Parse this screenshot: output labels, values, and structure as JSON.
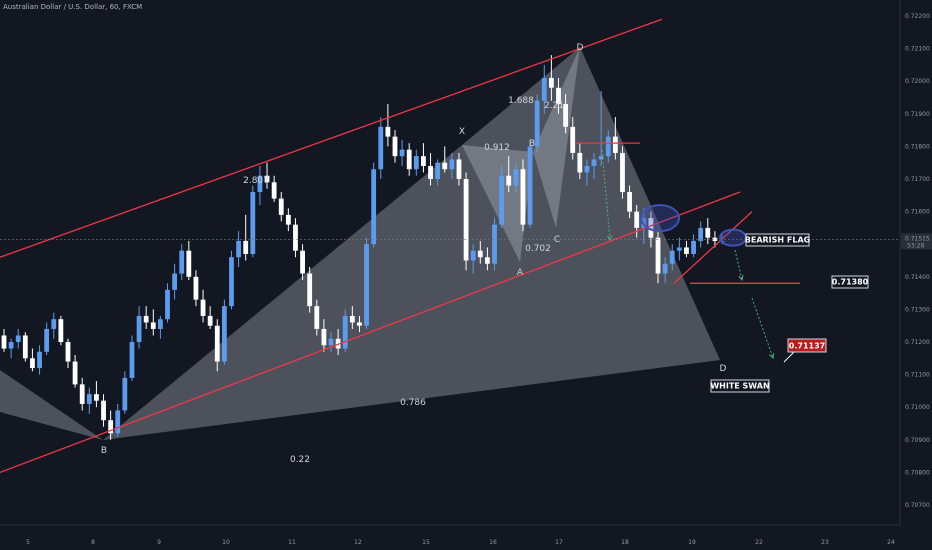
{
  "chart_data": {
    "type": "candlestick",
    "title": "Australian Dollar / U.S. Dollar, 60, FXCM",
    "x_ticks": [
      "5",
      "8",
      "9",
      "10",
      "11",
      "12",
      "15",
      "16",
      "17",
      "18",
      "19",
      "22",
      "23",
      "24"
    ],
    "y_ticks": [
      "0.72200",
      "0.72100",
      "0.72000",
      "0.71900",
      "0.71800",
      "0.71700",
      "0.71600",
      "0.71500",
      "0.71400",
      "0.71300",
      "0.71200",
      "0.71100",
      "0.71000",
      "0.70900",
      "0.70800",
      "0.70700"
    ],
    "ylim": [
      0.7065,
      0.7225
    ],
    "price": {
      "current": "0.71515",
      "countdown": "53:28"
    },
    "grid": false,
    "candles_ohlc": [
      [
        0.7122,
        0.7124,
        0.7117,
        0.7118
      ],
      [
        0.7118,
        0.7121,
        0.7115,
        0.712
      ],
      [
        0.712,
        0.7124,
        0.7118,
        0.7122
      ],
      [
        0.7122,
        0.7123,
        0.7114,
        0.7115
      ],
      [
        0.7115,
        0.7118,
        0.7111,
        0.7112
      ],
      [
        0.7112,
        0.7119,
        0.711,
        0.7117
      ],
      [
        0.7117,
        0.7126,
        0.7116,
        0.7124
      ],
      [
        0.7124,
        0.7129,
        0.7121,
        0.7127
      ],
      [
        0.7127,
        0.7128,
        0.7119,
        0.712
      ],
      [
        0.712,
        0.7121,
        0.7112,
        0.7114
      ],
      [
        0.7114,
        0.7116,
        0.7106,
        0.7107
      ],
      [
        0.7107,
        0.7109,
        0.7099,
        0.7101
      ],
      [
        0.7101,
        0.7106,
        0.7098,
        0.7104
      ],
      [
        0.7104,
        0.7108,
        0.71,
        0.7102
      ],
      [
        0.7102,
        0.7104,
        0.7094,
        0.7096
      ],
      [
        0.7096,
        0.7099,
        0.709,
        0.7092
      ],
      [
        0.7092,
        0.7101,
        0.7091,
        0.7099
      ],
      [
        0.7099,
        0.7111,
        0.7098,
        0.7109
      ],
      [
        0.7109,
        0.7122,
        0.7108,
        0.712
      ],
      [
        0.712,
        0.7131,
        0.7118,
        0.7128
      ],
      [
        0.7128,
        0.7131,
        0.7124,
        0.7126
      ],
      [
        0.7126,
        0.713,
        0.7122,
        0.7124
      ],
      [
        0.7124,
        0.7128,
        0.7121,
        0.7127
      ],
      [
        0.7127,
        0.7138,
        0.7126,
        0.7136
      ],
      [
        0.7136,
        0.7144,
        0.7133,
        0.7141
      ],
      [
        0.7141,
        0.715,
        0.7139,
        0.7148
      ],
      [
        0.7148,
        0.7151,
        0.7139,
        0.714
      ],
      [
        0.714,
        0.7142,
        0.7131,
        0.7133
      ],
      [
        0.7133,
        0.7136,
        0.7126,
        0.7128
      ],
      [
        0.7128,
        0.7131,
        0.7124,
        0.7125
      ],
      [
        0.7125,
        0.7127,
        0.7111,
        0.7114
      ],
      [
        0.7114,
        0.7133,
        0.7113,
        0.7131
      ],
      [
        0.7131,
        0.7148,
        0.713,
        0.7146
      ],
      [
        0.7146,
        0.7154,
        0.7143,
        0.7151
      ],
      [
        0.7151,
        0.7159,
        0.7145,
        0.7147
      ],
      [
        0.7147,
        0.7168,
        0.7146,
        0.7166
      ],
      [
        0.7166,
        0.7174,
        0.7162,
        0.7171
      ],
      [
        0.7171,
        0.7175,
        0.7167,
        0.7169
      ],
      [
        0.7169,
        0.7171,
        0.7163,
        0.7164
      ],
      [
        0.7164,
        0.7166,
        0.7157,
        0.7159
      ],
      [
        0.7159,
        0.7161,
        0.7154,
        0.7156
      ],
      [
        0.7156,
        0.7158,
        0.7146,
        0.7148
      ],
      [
        0.7148,
        0.715,
        0.7139,
        0.7141
      ],
      [
        0.7141,
        0.7143,
        0.7129,
        0.7131
      ],
      [
        0.7131,
        0.7133,
        0.7122,
        0.7124
      ],
      [
        0.7124,
        0.7127,
        0.7117,
        0.7119
      ],
      [
        0.7119,
        0.7123,
        0.7117,
        0.7121
      ],
      [
        0.7121,
        0.7124,
        0.7116,
        0.7118
      ],
      [
        0.7118,
        0.713,
        0.7117,
        0.7128
      ],
      [
        0.7128,
        0.7131,
        0.7124,
        0.7126
      ],
      [
        0.7126,
        0.7128,
        0.7123,
        0.7125
      ],
      [
        0.7125,
        0.7152,
        0.7124,
        0.715
      ],
      [
        0.715,
        0.7175,
        0.7149,
        0.7173
      ],
      [
        0.7173,
        0.7189,
        0.717,
        0.7186
      ],
      [
        0.7186,
        0.7193,
        0.718,
        0.7183
      ],
      [
        0.7183,
        0.7185,
        0.7175,
        0.7177
      ],
      [
        0.7177,
        0.7182,
        0.7174,
        0.7179
      ],
      [
        0.7179,
        0.7181,
        0.7171,
        0.7173
      ],
      [
        0.7173,
        0.7179,
        0.7171,
        0.7177
      ],
      [
        0.7177,
        0.7181,
        0.7172,
        0.7174
      ],
      [
        0.7174,
        0.7178,
        0.7168,
        0.717
      ],
      [
        0.717,
        0.7176,
        0.7168,
        0.7175
      ],
      [
        0.7175,
        0.718,
        0.7172,
        0.7173
      ],
      [
        0.7173,
        0.7178,
        0.717,
        0.7176
      ],
      [
        0.7176,
        0.7178,
        0.7168,
        0.717
      ],
      [
        0.717,
        0.7172,
        0.7142,
        0.7145
      ],
      [
        0.7145,
        0.715,
        0.7141,
        0.7148
      ],
      [
        0.7148,
        0.7151,
        0.7144,
        0.7146
      ],
      [
        0.7146,
        0.7149,
        0.7142,
        0.7144
      ],
      [
        0.7144,
        0.7158,
        0.7142,
        0.7156
      ],
      [
        0.7156,
        0.7174,
        0.7155,
        0.7171
      ],
      [
        0.7171,
        0.7177,
        0.7166,
        0.7168
      ],
      [
        0.7168,
        0.7175,
        0.7166,
        0.7173
      ],
      [
        0.7173,
        0.7176,
        0.7154,
        0.7156
      ],
      [
        0.7156,
        0.7182,
        0.7155,
        0.718
      ],
      [
        0.718,
        0.7196,
        0.7178,
        0.7194
      ],
      [
        0.7194,
        0.7205,
        0.719,
        0.7201
      ],
      [
        0.7201,
        0.7208,
        0.7194,
        0.7198
      ],
      [
        0.7198,
        0.7201,
        0.719,
        0.7193
      ],
      [
        0.7193,
        0.7196,
        0.7184,
        0.7186
      ],
      [
        0.7186,
        0.7189,
        0.7176,
        0.7178
      ],
      [
        0.7178,
        0.7181,
        0.717,
        0.7172
      ],
      [
        0.7172,
        0.7176,
        0.7168,
        0.7174
      ],
      [
        0.7174,
        0.7178,
        0.717,
        0.7176
      ],
      [
        0.7176,
        0.7197,
        0.7174,
        0.7177
      ],
      [
        0.7177,
        0.7185,
        0.7175,
        0.7183
      ],
      [
        0.7183,
        0.7189,
        0.7176,
        0.7178
      ],
      [
        0.7178,
        0.718,
        0.7164,
        0.7166
      ],
      [
        0.7166,
        0.7168,
        0.7158,
        0.716
      ],
      [
        0.716,
        0.7162,
        0.7152,
        0.7155
      ],
      [
        0.7155,
        0.7161,
        0.715,
        0.7158
      ],
      [
        0.7158,
        0.716,
        0.7149,
        0.7152
      ],
      [
        0.7152,
        0.7154,
        0.7138,
        0.7141
      ],
      [
        0.7141,
        0.7146,
        0.7138,
        0.7144
      ],
      [
        0.7144,
        0.715,
        0.7142,
        0.7148
      ],
      [
        0.7148,
        0.7152,
        0.7145,
        0.7149
      ],
      [
        0.7149,
        0.7151,
        0.7146,
        0.7147
      ],
      [
        0.7147,
        0.7153,
        0.7146,
        0.7151
      ],
      [
        0.7151,
        0.7157,
        0.7149,
        0.7155
      ],
      [
        0.7155,
        0.7158,
        0.715,
        0.7152
      ],
      [
        0.7152,
        0.7154,
        0.7149,
        0.7151
      ],
      [
        0.7151,
        0.7153,
        0.715,
        0.7151
      ]
    ],
    "channel_lines": [
      {
        "from": [
          "start",
          0.7146
        ],
        "to": [
          "17.7",
          0.7219
        ]
      },
      {
        "from": [
          "start",
          0.708
        ],
        "to": [
          "19.8",
          0.7166
        ]
      }
    ],
    "pattern_points": [
      {
        "label": "B",
        "price": 0.709
      },
      {
        "label": "X",
        "price": 0.7185
      },
      {
        "label": "A",
        "price": 0.7146
      },
      {
        "label": "B",
        "price": 0.7177
      },
      {
        "label": "C",
        "price": 0.7158
      },
      {
        "label": "D",
        "price": 0.7208
      },
      {
        "label": "D",
        "price": 0.7114
      }
    ],
    "fib_ratios": [
      "2.807",
      "0.912",
      "1.688",
      "2.21",
      "0.702",
      "0.786",
      "0.22"
    ],
    "horizontal_levels": [
      {
        "price": 0.7181,
        "color": "#f23645"
      },
      {
        "price": 0.7138,
        "color": "#f23645"
      }
    ],
    "labels": [
      {
        "text": "BEARISH FLAG",
        "price": 0.71515
      },
      {
        "text": "0.71380",
        "price": 0.7138
      },
      {
        "text": "0.71137",
        "price": 0.71137
      },
      {
        "text": "WHITE SWAN",
        "price": 0.7105
      }
    ],
    "colors": {
      "background": "#131722",
      "candle_up": "#5d9cec",
      "candle_down": "#ffffff",
      "channel": "#f23645",
      "pattern_fill": "rgba(200,204,214,0.32)",
      "highlight": "#3f51b5",
      "arrow": "#4caf7d",
      "target_box": "#b71c1c"
    }
  }
}
